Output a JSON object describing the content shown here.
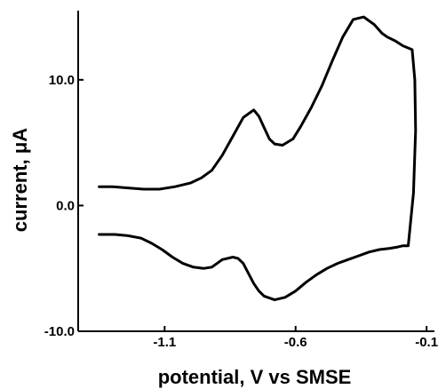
{
  "chart_data": {
    "type": "line",
    "title": "",
    "xlabel": "potential, V vs SMSE",
    "ylabel": "current, μA",
    "xlim": [
      -1.43,
      -0.07
    ],
    "ylim": [
      -10.0,
      15.5
    ],
    "x_ticks": [
      {
        "value": -1.1,
        "label": "-1.1"
      },
      {
        "value": -0.6,
        "label": "-0.6"
      },
      {
        "value": -0.1,
        "label": "-0.1"
      }
    ],
    "y_ticks": [
      {
        "value": -10.0,
        "label": "-10.0"
      },
      {
        "value": 0.0,
        "label": "0.0"
      },
      {
        "value": 10.0,
        "label": "10.0"
      }
    ],
    "grid": false,
    "legend": "none",
    "series": [
      {
        "color": "#000000",
        "x": [
          -1.35,
          -1.3,
          -1.24,
          -1.18,
          -1.12,
          -1.06,
          -1.0,
          -0.96,
          -0.92,
          -0.88,
          -0.84,
          -0.8,
          -0.76,
          -0.74,
          -0.72,
          -0.7,
          -0.68,
          -0.65,
          -0.61,
          -0.58,
          -0.54,
          -0.5,
          -0.46,
          -0.42,
          -0.38,
          -0.34,
          -0.3,
          -0.27,
          -0.25,
          -0.22,
          -0.19,
          -0.155,
          -0.145,
          -0.142,
          -0.15,
          -0.17,
          -0.19,
          -0.21,
          -0.24,
          -0.28,
          -0.32,
          -0.36,
          -0.4,
          -0.44,
          -0.48,
          -0.52,
          -0.56,
          -0.6,
          -0.64,
          -0.68,
          -0.72,
          -0.74,
          -0.76,
          -0.78,
          -0.8,
          -0.82,
          -0.84,
          -0.86,
          -0.88,
          -0.92,
          -0.95,
          -0.99,
          -1.03,
          -1.07,
          -1.11,
          -1.15,
          -1.19,
          -1.24,
          -1.29,
          -1.33,
          -1.35
        ],
        "y": [
          1.5,
          1.5,
          1.4,
          1.3,
          1.3,
          1.5,
          1.8,
          2.2,
          2.8,
          4.0,
          5.5,
          7.0,
          7.6,
          7.1,
          6.2,
          5.3,
          4.9,
          4.8,
          5.3,
          6.3,
          7.8,
          9.5,
          11.5,
          13.4,
          14.8,
          15.0,
          14.4,
          13.7,
          13.4,
          13.1,
          12.7,
          12.4,
          10.0,
          6.0,
          1.0,
          -3.2,
          -3.2,
          -3.3,
          -3.4,
          -3.5,
          -3.7,
          -4.0,
          -4.3,
          -4.6,
          -5.0,
          -5.5,
          -6.1,
          -6.8,
          -7.3,
          -7.5,
          -7.2,
          -6.8,
          -6.2,
          -5.4,
          -4.6,
          -4.2,
          -4.1,
          -4.2,
          -4.3,
          -4.9,
          -5.0,
          -4.9,
          -4.6,
          -4.1,
          -3.5,
          -3.0,
          -2.6,
          -2.4,
          -2.3,
          -2.3,
          -2.3
        ]
      }
    ]
  }
}
